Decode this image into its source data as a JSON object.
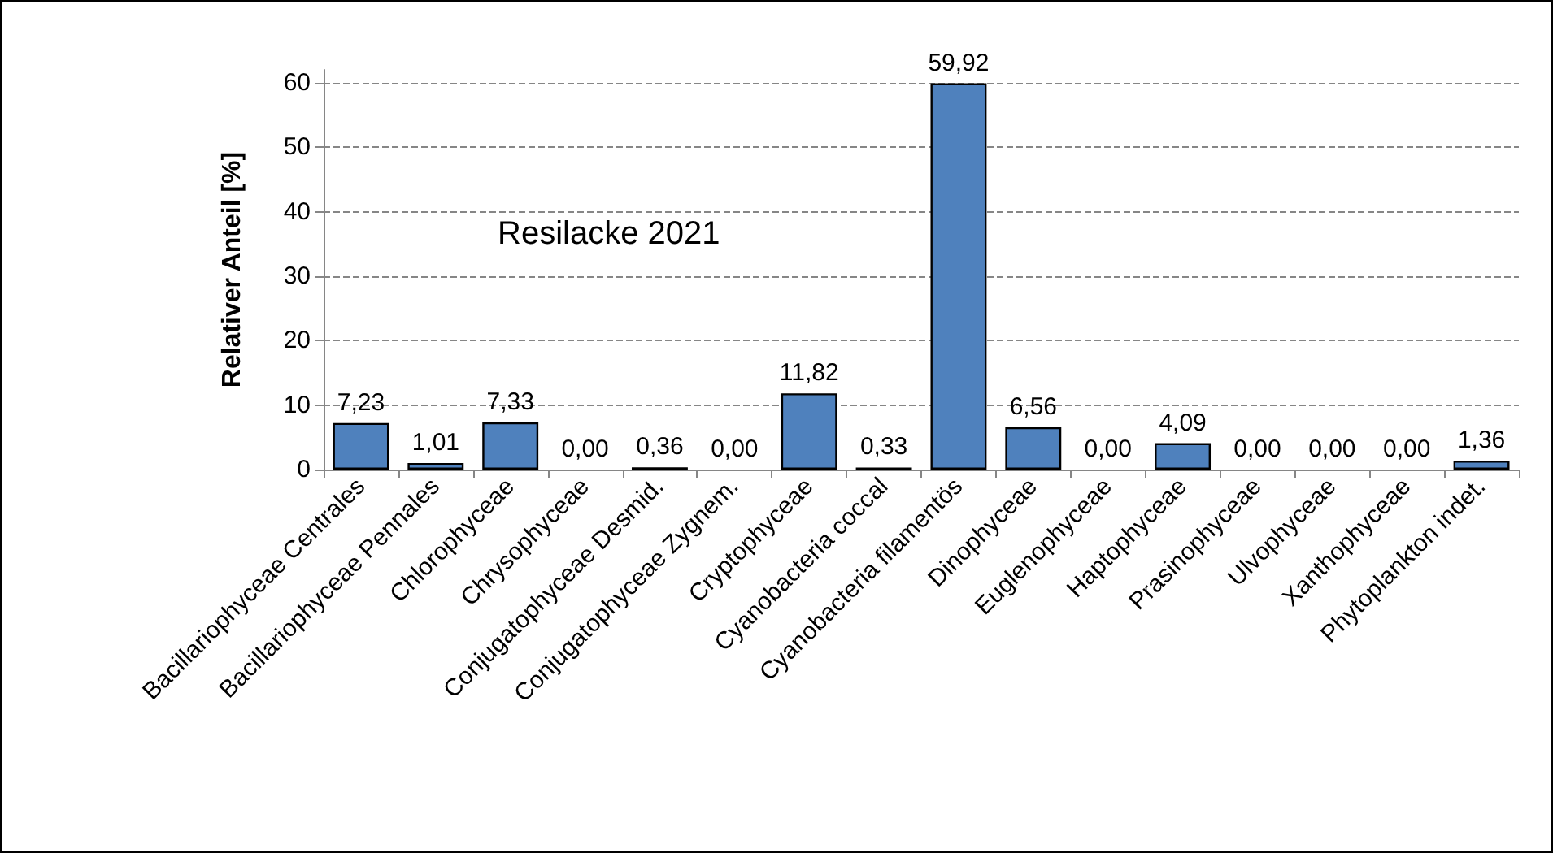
{
  "chart_data": {
    "type": "bar",
    "title": "Resilacke 2021",
    "ylabel": "Relativer Anteil [%]",
    "categories": [
      "Bacillariophyceae Centrales",
      "Bacillariophyceae Pennales",
      "Chlorophyceae",
      "Chrysophyceae",
      "Conjugatophyceae Desmid.",
      "Conjugatophyceae Zygnem.",
      "Cryptophyceae",
      "Cyanobacteria coccal",
      "Cyanobacteria filamentös",
      "Dinophyceae",
      "Euglenophyceae",
      "Haptophyceae",
      "Prasinophyceae",
      "Ulvophyceae",
      "Xanthophyceae",
      "Phytoplankton indet."
    ],
    "values": [
      7.23,
      1.01,
      7.33,
      0,
      0.36,
      0,
      11.82,
      0.33,
      59.92,
      6.56,
      0,
      4.09,
      0,
      0,
      0,
      1.36
    ],
    "value_labels": [
      "7,23",
      "1,01",
      "7,33",
      "0,00",
      "0,36",
      "0,00",
      "11,82",
      "0,33",
      "59,92",
      "6,56",
      "0,00",
      "4,09",
      "0,00",
      "0,00",
      "0,00",
      "1,36"
    ],
    "color": "#4f81bd",
    "ylim": [
      0,
      62
    ],
    "yticks": [
      0,
      10,
      20,
      30,
      40,
      50,
      60
    ],
    "grid": "y"
  }
}
